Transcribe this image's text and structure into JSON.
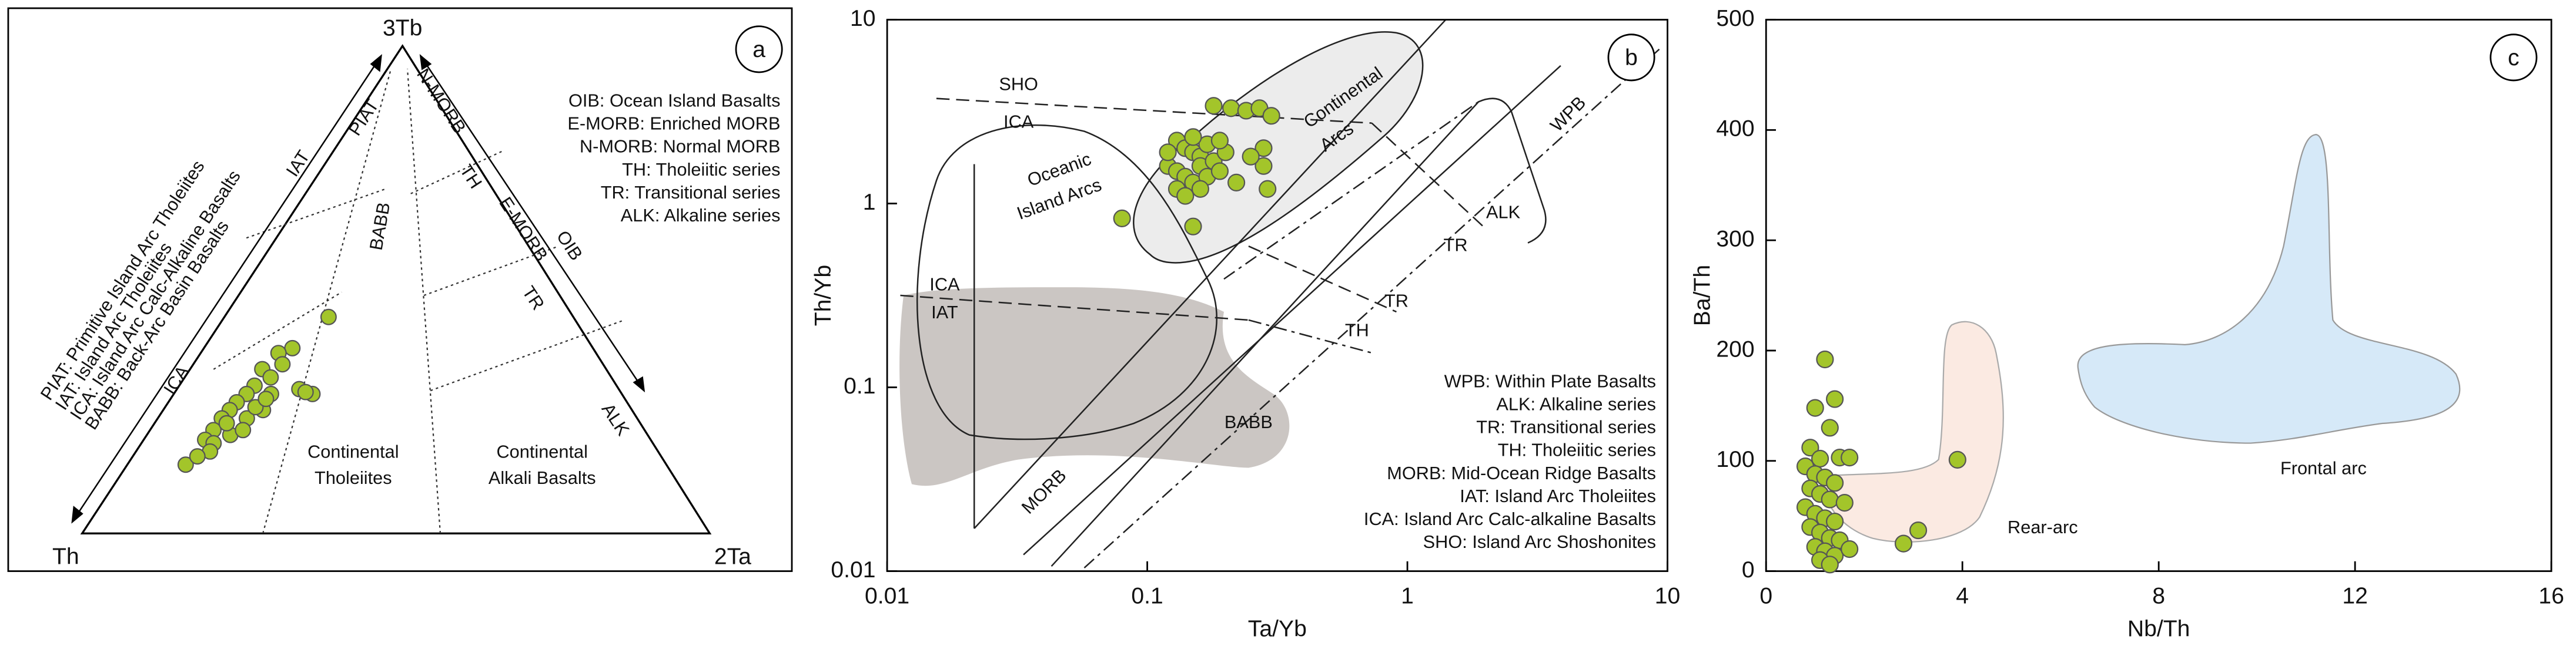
{
  "chart_data": [
    {
      "type": "ternary",
      "panel_label": "a",
      "vertex_labels": {
        "top": "3Tb",
        "left": "Th",
        "right": "2Ta"
      },
      "side_legend": [
        "PIAT: Primitive Island Arc Tholeiites",
        "IAT: Island Arc Tholeiites",
        "ICA: Island Arc Calc-Alkaline Basalts",
        "BABB: Back-Arc Basin Basalts"
      ],
      "legend": [
        "OIB: Ocean Island Basalts",
        "E-MORB: Enriched MORB",
        "N-MORB: Normal MORB",
        "TH: Tholeiitic series",
        "TR: Transitional series",
        "ALK: Alkaline series"
      ],
      "field_labels": [
        "PIAT",
        "IAT",
        "ICA",
        "BABB",
        "N-MORB",
        "TH",
        "E-MORB",
        "OIB",
        "TR",
        "ALK",
        "Continental",
        "Tholeiites",
        "Continental",
        "Alkali Basalts"
      ],
      "color": "#a3c52a",
      "tb": [
        0.141,
        0.444,
        0.286,
        0.296,
        0.38,
        0.37,
        0.337,
        0.32,
        0.303,
        0.286,
        0.269,
        0.253,
        0.236,
        0.212,
        0.192,
        0.185,
        0.202,
        0.236,
        0.253,
        0.259,
        0.286,
        0.347,
        0.226,
        0.168,
        0.158,
        0.29,
        0.212,
        0.276
      ],
      "ta": [
        0.093,
        0.166,
        0.221,
        0.195,
        0.141,
        0.124,
        0.115,
        0.137,
        0.12,
        0.116,
        0.109,
        0.106,
        0.102,
        0.101,
        0.098,
        0.115,
        0.133,
        0.142,
        0.159,
        0.144,
        0.155,
        0.142,
        0.115,
        0.118,
        0.103,
        0.208,
        0.148,
        0.152
      ]
    },
    {
      "type": "scatter",
      "panel_label": "b",
      "log_scale": true,
      "xlabel": "Ta/Yb",
      "ylabel": "Th/Yb",
      "xlim": [
        0.01,
        10
      ],
      "ylim": [
        0.01,
        10
      ],
      "xticks": [
        0.01,
        0.1,
        1,
        10
      ],
      "yticks": [
        0.01,
        0.1,
        1,
        10
      ],
      "color": "#a3c52a",
      "x": [
        0.18,
        0.21,
        0.24,
        0.27,
        0.3,
        0.13,
        0.14,
        0.15,
        0.16,
        0.17,
        0.12,
        0.13,
        0.14,
        0.15,
        0.16,
        0.17,
        0.18,
        0.19,
        0.2,
        0.13,
        0.14,
        0.16,
        0.22,
        0.28,
        0.28,
        0.29,
        0.25,
        0.08,
        0.15,
        0.12,
        0.15,
        0.19
      ],
      "values": [
        3.4,
        3.3,
        3.2,
        3.3,
        3.0,
        2.2,
        2.0,
        1.9,
        1.8,
        2.1,
        1.6,
        1.5,
        1.4,
        1.3,
        1.6,
        1.4,
        1.7,
        1.5,
        1.9,
        1.2,
        1.1,
        1.2,
        1.3,
        2.0,
        1.6,
        1.2,
        1.8,
        0.83,
        0.75,
        1.9,
        2.3,
        2.2
      ],
      "field_labels": [
        "SHO",
        "ICA",
        "Oceanic",
        "Island Arcs",
        "Continental",
        "Arcs",
        "WPB",
        "ALK",
        "TR",
        "TR",
        "TH",
        "ICA",
        "IAT",
        "BABB",
        "MORB"
      ],
      "legend": [
        "WPB: Within Plate Basalts",
        "ALK: Alkaline series",
        "TR: Transitional series",
        "TH: Tholeiitic series",
        "MORB: Mid-Ocean Ridge Basalts",
        "IAT: Island Arc Tholeiites",
        "ICA: Island Arc Calc-alkaline Basalts",
        "SHO: Island Arc Shoshonites"
      ]
    },
    {
      "type": "scatter",
      "panel_label": "c",
      "log_scale": false,
      "xlabel": "Nb/Th",
      "ylabel": "Ba/Th",
      "xlim": [
        0,
        16
      ],
      "ylim": [
        0,
        500
      ],
      "xticks": [
        0,
        4,
        8,
        12,
        16
      ],
      "yticks": [
        0,
        100,
        200,
        300,
        400,
        500
      ],
      "color": "#a3c52a",
      "x": [
        1.2,
        1.0,
        1.4,
        1.3,
        0.9,
        1.1,
        1.5,
        1.7,
        0.8,
        1.0,
        1.2,
        1.4,
        0.9,
        1.1,
        1.3,
        1.6,
        0.8,
        1.0,
        1.2,
        1.4,
        0.9,
        1.1,
        1.3,
        1.5,
        1.0,
        1.2,
        1.4,
        1.1,
        1.3,
        1.7,
        3.9,
        3.1,
        2.8
      ],
      "values": [
        192,
        148,
        156,
        130,
        112,
        102,
        103,
        103,
        95,
        88,
        85,
        80,
        75,
        70,
        65,
        62,
        58,
        52,
        48,
        45,
        40,
        35,
        30,
        28,
        22,
        18,
        14,
        10,
        6,
        20,
        101,
        37,
        25
      ],
      "field_labels": [
        "Rear-arc",
        "Frontal arc"
      ]
    }
  ]
}
